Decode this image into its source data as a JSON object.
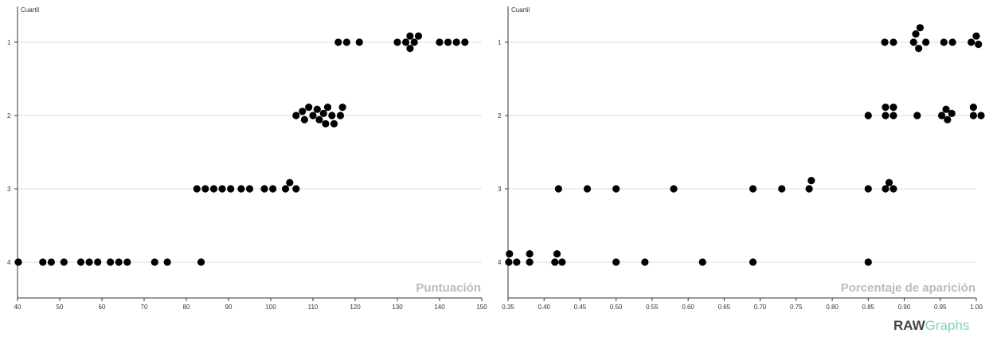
{
  "brand": {
    "part1": "RAW",
    "part2": "Graphs"
  },
  "chart_data": [
    {
      "type": "scatter",
      "ylabel": "Cuartil",
      "xlabel": "Puntuación",
      "xlim": [
        40,
        150
      ],
      "xticks": [
        "40",
        "50",
        "60",
        "70",
        "80",
        "90",
        "100",
        "110",
        "120",
        "130",
        "140",
        "150"
      ],
      "categories": [
        "1",
        "2",
        "3",
        "4"
      ],
      "points": [
        {
          "x": 116,
          "y": "1"
        },
        {
          "x": 118,
          "y": "1"
        },
        {
          "x": 121,
          "y": "1"
        },
        {
          "x": 130,
          "y": "1"
        },
        {
          "x": 132,
          "y": "1"
        },
        {
          "x": 133,
          "y": "1"
        },
        {
          "x": 134,
          "y": "1"
        },
        {
          "x": 135,
          "y": "1"
        },
        {
          "x": 133,
          "y": "1"
        },
        {
          "x": 140,
          "y": "1"
        },
        {
          "x": 142,
          "y": "1"
        },
        {
          "x": 144,
          "y": "1"
        },
        {
          "x": 146,
          "y": "1"
        },
        {
          "x": 106,
          "y": "2"
        },
        {
          "x": 107.5,
          "y": "2"
        },
        {
          "x": 108,
          "y": "2"
        },
        {
          "x": 109,
          "y": "2"
        },
        {
          "x": 110,
          "y": "2"
        },
        {
          "x": 111,
          "y": "2"
        },
        {
          "x": 111.5,
          "y": "2"
        },
        {
          "x": 112.5,
          "y": "2"
        },
        {
          "x": 113,
          "y": "2"
        },
        {
          "x": 113.5,
          "y": "2"
        },
        {
          "x": 114.5,
          "y": "2"
        },
        {
          "x": 115,
          "y": "2"
        },
        {
          "x": 116.5,
          "y": "2"
        },
        {
          "x": 117,
          "y": "2"
        },
        {
          "x": 82.5,
          "y": "3"
        },
        {
          "x": 84.5,
          "y": "3"
        },
        {
          "x": 86.5,
          "y": "3"
        },
        {
          "x": 88.5,
          "y": "3"
        },
        {
          "x": 90.5,
          "y": "3"
        },
        {
          "x": 93,
          "y": "3"
        },
        {
          "x": 95,
          "y": "3"
        },
        {
          "x": 98.5,
          "y": "3"
        },
        {
          "x": 100.5,
          "y": "3"
        },
        {
          "x": 103.5,
          "y": "3"
        },
        {
          "x": 104.5,
          "y": "3"
        },
        {
          "x": 106,
          "y": "3"
        },
        {
          "x": 40,
          "y": "4"
        },
        {
          "x": 46,
          "y": "4"
        },
        {
          "x": 48,
          "y": "4"
        },
        {
          "x": 51,
          "y": "4"
        },
        {
          "x": 55,
          "y": "4"
        },
        {
          "x": 57,
          "y": "4"
        },
        {
          "x": 59,
          "y": "4"
        },
        {
          "x": 62,
          "y": "4"
        },
        {
          "x": 64,
          "y": "4"
        },
        {
          "x": 66,
          "y": "4"
        },
        {
          "x": 72.5,
          "y": "4"
        },
        {
          "x": 75.5,
          "y": "4"
        },
        {
          "x": 83.5,
          "y": "4"
        }
      ]
    },
    {
      "type": "scatter",
      "ylabel": "Cuartil",
      "xlabel": "Porcentaje de aparición",
      "xlim": [
        0.35,
        1.0
      ],
      "xticks": [
        "0.35",
        "0.40",
        "0.45",
        "0.50",
        "0.55",
        "0.60",
        "0.65",
        "0.70",
        "0.75",
        "0.80",
        "0.85",
        "0.90",
        "0.95",
        "1.00"
      ],
      "categories": [
        "1",
        "2",
        "3",
        "4"
      ],
      "points": [
        {
          "x": 0.873,
          "y": "1"
        },
        {
          "x": 0.885,
          "y": "1"
        },
        {
          "x": 0.913,
          "y": "1"
        },
        {
          "x": 0.916,
          "y": "1"
        },
        {
          "x": 0.92,
          "y": "1"
        },
        {
          "x": 0.922,
          "y": "1"
        },
        {
          "x": 0.93,
          "y": "1"
        },
        {
          "x": 0.955,
          "y": "1"
        },
        {
          "x": 0.967,
          "y": "1"
        },
        {
          "x": 0.993,
          "y": "1"
        },
        {
          "x": 1.0,
          "y": "1"
        },
        {
          "x": 1.003,
          "y": "1"
        },
        {
          "x": 0.85,
          "y": "2"
        },
        {
          "x": 0.874,
          "y": "2"
        },
        {
          "x": 0.874,
          "y": "2"
        },
        {
          "x": 0.885,
          "y": "2"
        },
        {
          "x": 0.885,
          "y": "2"
        },
        {
          "x": 0.918,
          "y": "2"
        },
        {
          "x": 0.952,
          "y": "2"
        },
        {
          "x": 0.958,
          "y": "2"
        },
        {
          "x": 0.96,
          "y": "2"
        },
        {
          "x": 0.966,
          "y": "2"
        },
        {
          "x": 0.996,
          "y": "2"
        },
        {
          "x": 0.996,
          "y": "2"
        },
        {
          "x": 1.008,
          "y": "2"
        },
        {
          "x": 0.42,
          "y": "3"
        },
        {
          "x": 0.46,
          "y": "3"
        },
        {
          "x": 0.5,
          "y": "3"
        },
        {
          "x": 0.58,
          "y": "3"
        },
        {
          "x": 0.69,
          "y": "3"
        },
        {
          "x": 0.73,
          "y": "3"
        },
        {
          "x": 0.768,
          "y": "3"
        },
        {
          "x": 0.771,
          "y": "3"
        },
        {
          "x": 0.85,
          "y": "3"
        },
        {
          "x": 0.874,
          "y": "3"
        },
        {
          "x": 0.879,
          "y": "3"
        },
        {
          "x": 0.885,
          "y": "3"
        },
        {
          "x": 0.35,
          "y": "4"
        },
        {
          "x": 0.352,
          "y": "4"
        },
        {
          "x": 0.362,
          "y": "4"
        },
        {
          "x": 0.38,
          "y": "4"
        },
        {
          "x": 0.38,
          "y": "4"
        },
        {
          "x": 0.415,
          "y": "4"
        },
        {
          "x": 0.418,
          "y": "4"
        },
        {
          "x": 0.425,
          "y": "4"
        },
        {
          "x": 0.5,
          "y": "4"
        },
        {
          "x": 0.54,
          "y": "4"
        },
        {
          "x": 0.62,
          "y": "4"
        },
        {
          "x": 0.69,
          "y": "4"
        },
        {
          "x": 0.85,
          "y": "4"
        }
      ]
    }
  ]
}
